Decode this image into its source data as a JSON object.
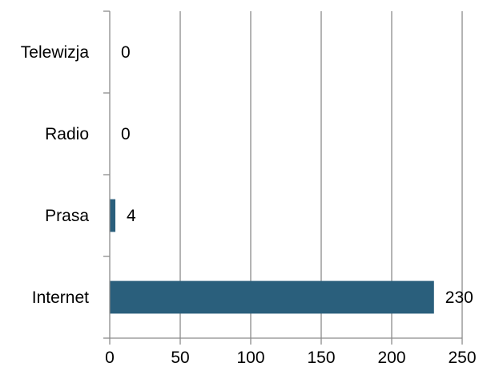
{
  "chart_data": {
    "type": "bar",
    "orientation": "horizontal",
    "title": "",
    "xlabel": "",
    "ylabel": "",
    "categories": [
      "Telewizja",
      "Radio",
      "Prasa",
      "Internet"
    ],
    "values": [
      0,
      0,
      4,
      230
    ],
    "data_labels": [
      "0",
      "0",
      "4",
      "230"
    ],
    "xlim": [
      0,
      250
    ],
    "x_ticks": [
      0,
      50,
      100,
      150,
      200,
      250
    ],
    "x_tick_labels": [
      "0",
      "50",
      "100",
      "150",
      "200",
      "250"
    ],
    "grid": "vertical",
    "legend": "none",
    "colors": {
      "bar": "#2a5f7c",
      "grid": "#8c8c8c",
      "axis": "#8c8c8c",
      "text": "#000000"
    }
  }
}
